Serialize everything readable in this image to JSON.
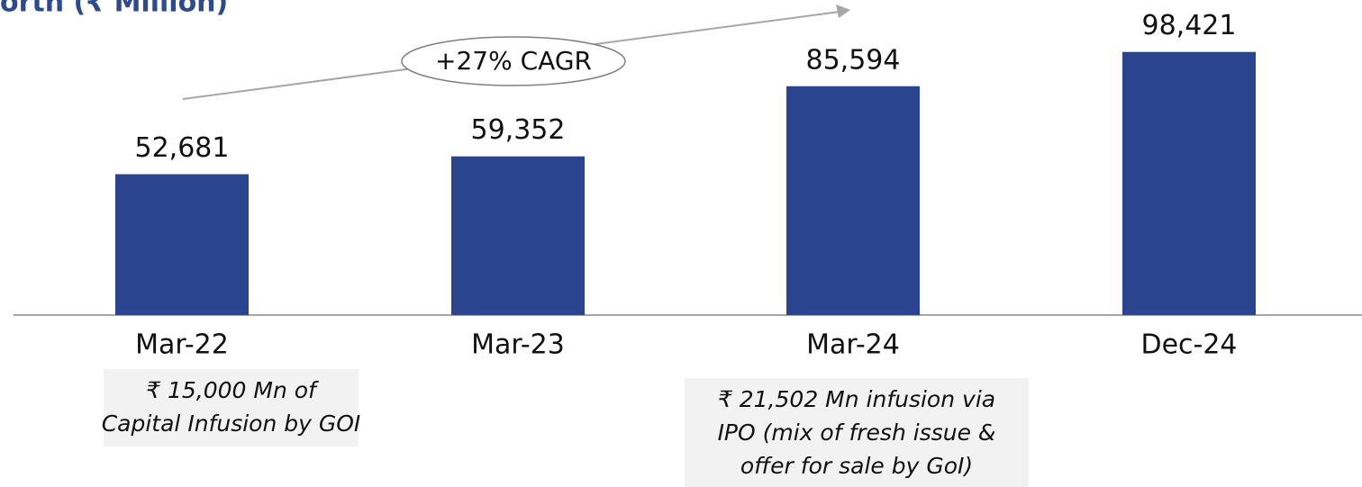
{
  "chart_data": {
    "type": "bar",
    "title": "orth (₹ Million)",
    "categories": [
      "Mar-22",
      "Mar-23",
      "Mar-24",
      "Dec-24"
    ],
    "values": [
      52681,
      59352,
      85594,
      98421
    ],
    "value_labels": [
      "52,681",
      "59,352",
      "85,594",
      "98,421"
    ],
    "color": "#2b4490",
    "ylim": [
      0,
      100000
    ],
    "growth_label": "+27% CAGR",
    "annotations": [
      {
        "category": 0,
        "lines": [
          "₹ 15,000 Mn of",
          "Capital Infusion by GOI"
        ]
      },
      {
        "category": 2,
        "lines": [
          "₹ 21,502 Mn infusion via",
          "IPO (mix of fresh issue &",
          "offer for sale by GoI)"
        ]
      }
    ]
  }
}
